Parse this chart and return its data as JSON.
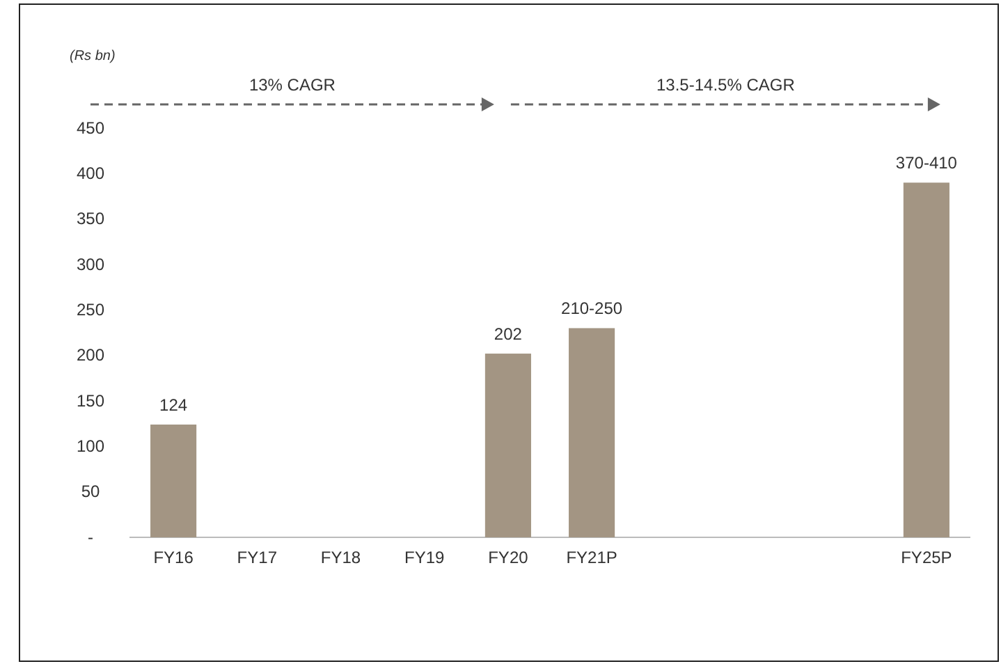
{
  "chart_data": {
    "type": "bar",
    "ylabel": "(Rs bn)",
    "categories": [
      "FY16",
      "FY17",
      "FY18",
      "FY19",
      "FY20",
      "FY21P",
      null,
      null,
      null,
      "FY25P"
    ],
    "values": [
      124,
      null,
      null,
      null,
      202,
      230,
      null,
      null,
      null,
      390
    ],
    "value_labels": [
      "124",
      null,
      null,
      null,
      "202",
      "210-250",
      null,
      null,
      null,
      "370-410"
    ],
    "color": "#a39583",
    "ylim": [
      0,
      450
    ],
    "yticks": [
      {
        "value": 0,
        "label": "-"
      },
      50,
      100,
      150,
      200,
      250,
      300,
      350,
      400,
      450
    ],
    "annotations": [
      "13% CAGR",
      "13.5-14.5% CAGR"
    ],
    "grid": false
  }
}
